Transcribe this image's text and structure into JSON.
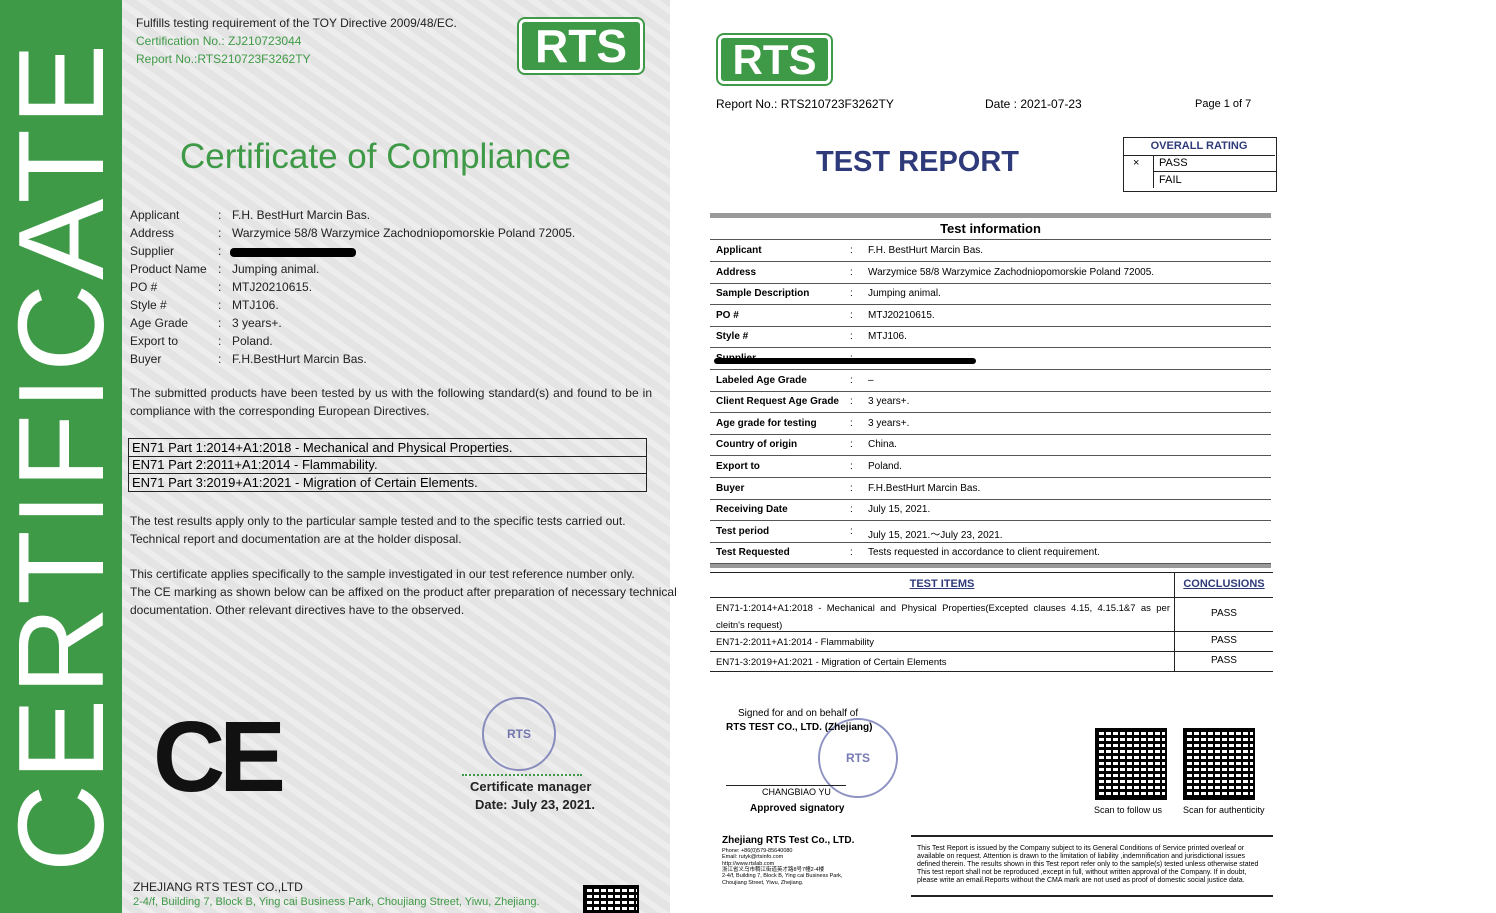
{
  "certificate": {
    "vertical_title": "CERTIFICATE",
    "header_lines": [
      "Fulfills testing requirement of the TOY Directive 2009/48/EC.",
      "Certification No.: ZJ210723044",
      "Report No.:RTS210723F3262TY"
    ],
    "logo": "RTS",
    "title": "Certificate of Compliance",
    "separator": ":",
    "fields": [
      {
        "label": "Applicant",
        "value": "F.H. BestHurt Marcin Bas."
      },
      {
        "label": "Address",
        "value": "Warzymice 58/8 Warzymice Zachodniopomorskie Poland 72005."
      },
      {
        "label": "Supplier"
      },
      {
        "label": "Product Name",
        "value": "Jumping animal."
      },
      {
        "label": "PO #",
        "value": "MTJ20210615."
      },
      {
        "label": "Style #",
        "value": "MTJ106."
      },
      {
        "label": "Age Grade",
        "value": "3 years+."
      },
      {
        "label": "Export to",
        "value": "Poland."
      },
      {
        "label": "Buyer",
        "value": "F.H.BestHurt Marcin Bas."
      }
    ],
    "intro": [
      "The submitted products have been tested by us with the following standard(s) and found to be in",
      "compliance with the corresponding European Directives."
    ],
    "standards": [
      "EN71 Part 1:2014+A1:2018 - Mechanical and Physical Properties.",
      "EN71 Part 2:2011+A1:2014 - Flammability.",
      "EN71 Part 3:2019+A1:2021 - Migration of Certain Elements."
    ],
    "notes": [
      "The test results apply only to the particular sample tested and to the specific tests carried out.",
      "Technical report and documentation are at the holder disposal.",
      "This certificate applies specifically to the sample investigated in our test reference number only.",
      "The CE marking as shown below can be affixed on the product after preparation of necessary technical",
      "documentation. Other relevant directives have to the observed."
    ],
    "ce_mark": "CE",
    "signature": {
      "role": "Certificate manager",
      "date": "Date: July 23, 2021."
    },
    "footer": {
      "company": "ZHEJIANG RTS TEST CO.,LTD",
      "address": "2-4/f, Building 7, Block B, Ying cai Business Park, Choujiang Street, Yiwu, Zhejiang."
    }
  },
  "report": {
    "logo": "RTS",
    "report_no": "Report No.: RTS210723F3262TY",
    "date": "Date : 2021-07-23",
    "page": "Page 1 of 7",
    "title": "TEST REPORT",
    "rating": {
      "header": "OVERALL RATING",
      "options": [
        {
          "mark": "×",
          "label": "PASS"
        },
        {
          "label": "FAIL"
        }
      ]
    },
    "section_title": "Test information",
    "separator": ":",
    "info": [
      {
        "label": "Applicant",
        "value": "F.H. BestHurt Marcin Bas."
      },
      {
        "label": "Address",
        "value": "Warzymice 58/8 Warzymice Zachodniopomorskie Poland 72005."
      },
      {
        "label": "Sample Description",
        "value": "Jumping animal."
      },
      {
        "label": "PO #",
        "value": "MTJ20210615."
      },
      {
        "label": "Style #",
        "value": "MTJ106."
      },
      {
        "label": "Supplier"
      },
      {
        "label": "Labeled Age Grade",
        "value": "–"
      },
      {
        "label": "Client Request Age Grade",
        "value": "3 years+."
      },
      {
        "label": "Age grade for testing",
        "value": "3 years+."
      },
      {
        "label": "Country of origin",
        "value": "China."
      },
      {
        "label": "Export to",
        "value": "Poland."
      },
      {
        "label": "Buyer",
        "value": "F.H.BestHurt Marcin Bas."
      },
      {
        "label": "Receiving Date",
        "value": "July 15, 2021."
      },
      {
        "label": "Test period",
        "value": "July 15, 2021.～July 23, 2021."
      },
      {
        "label": "Test Requested",
        "value": "Tests requested in accordance to client requirement."
      }
    ],
    "items_header": [
      "TEST ITEMS",
      "CONCLUSIONS"
    ],
    "items": [
      {
        "item": "EN71-1:2014+A1:2018 - Mechanical and Physical Properties(Excepted clauses 4.15, 4.15.1&7 as per cleitn's request)",
        "result": "PASS"
      },
      {
        "item": "EN71-2:2011+A1:2014 - Flammability",
        "result": "PASS"
      },
      {
        "item": "EN71-3:2019+A1:2021 - Migration of Certain Elements",
        "result": "PASS"
      }
    ],
    "signing": {
      "line1": "Signed for and on behalf of",
      "company": "RTS TEST CO., LTD. (Zhejiang)",
      "signer": "CHANGBIAO YU",
      "role": "Approved signatory"
    },
    "qr_captions": [
      "Scan to follow us",
      "Scan for authenticity"
    ],
    "contact": {
      "company": "Zhejiang RTS Test Co., LTD.",
      "lines": [
        "Phone: +86(0)579-85640080",
        "Email: rutyk@rtsinfo.com",
        "http://www.rtslab.com",
        "浙江省义乌市稠江街道英才路8号7幢2-4楼",
        "2-4/f, Building 7, Block B, Ying cai Business Park,",
        "Choujiang Street, Yiwu, Zhejiang."
      ]
    },
    "disclaimer": [
      "This Test Report is issued by the Company subject to its General Conditions of Service printed overleaf or",
      "available on request. Attention is drawn to the limitation of liability ,indemnification and jurisdictional issues",
      "defined therein. The results shown in this Test report refer only to the sample(s) tested unless otherwise stated",
      "This test report shall not be reproduced ,except in full, without written approval of the Company. If in doubt,",
      "please write an email.Reports without the CMA mark are not used as proof of domestic social justice data."
    ]
  }
}
